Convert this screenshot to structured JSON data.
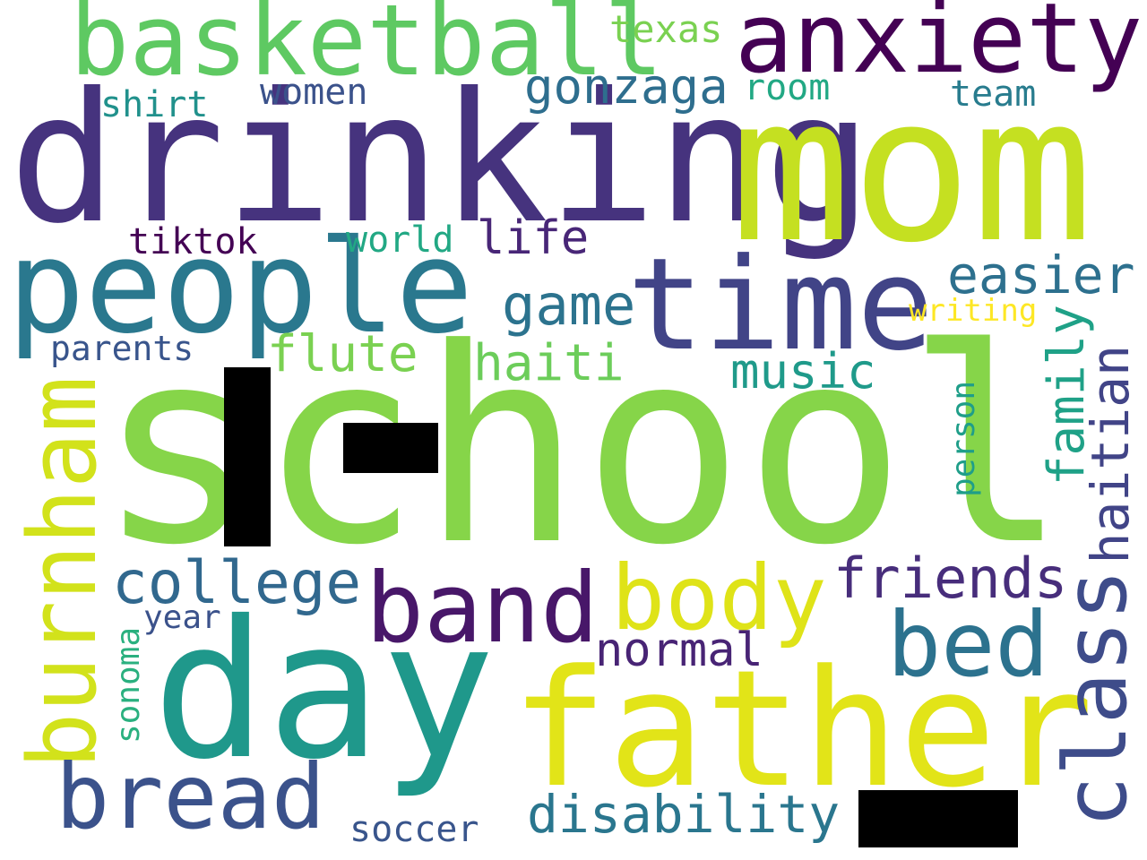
{
  "word_cloud": {
    "words": {
      "school": {
        "text": "school",
        "color": "#86d549"
      },
      "drinking": {
        "text": "drinking",
        "color": "#46337e"
      },
      "mom": {
        "text": "mom",
        "color": "#c5e021"
      },
      "day": {
        "text": "day",
        "color": "#1f988b"
      },
      "father": {
        "text": "father",
        "color": "#e2e418"
      },
      "time": {
        "text": "time",
        "color": "#414487"
      },
      "people": {
        "text": "people",
        "color": "#2a788e"
      },
      "basketball": {
        "text": "basketball",
        "color": "#5ec962"
      },
      "anxiety": {
        "text": "anxiety",
        "color": "#440154"
      },
      "burnham": {
        "text": "burnham",
        "color": "#d2e21b"
      },
      "class": {
        "text": "class",
        "color": "#3e4c8a"
      },
      "band": {
        "text": "band",
        "color": "#481769"
      },
      "bed": {
        "text": "bed",
        "color": "#2c728e"
      },
      "bread": {
        "text": "bread",
        "color": "#3b528b"
      },
      "body": {
        "text": "body",
        "color": "#dfe318"
      },
      "college": {
        "text": "college",
        "color": "#31688e"
      },
      "friends": {
        "text": "friends",
        "color": "#472d7b"
      },
      "disability": {
        "text": "disability",
        "color": "#2a768e"
      },
      "easier": {
        "text": "easier",
        "color": "#2d708e"
      },
      "haitian": {
        "text": "haitian",
        "color": "#414487"
      },
      "family": {
        "text": "family",
        "color": "#1fa187"
      },
      "game": {
        "text": "game",
        "color": "#2c738e"
      },
      "gonzaga": {
        "text": "gonzaga",
        "color": "#2e6e8e"
      },
      "haiti": {
        "text": "haiti",
        "color": "#6ccd5a"
      },
      "flute": {
        "text": "flute",
        "color": "#7ad151"
      },
      "music": {
        "text": "music",
        "color": "#1f9a8a"
      },
      "normal": {
        "text": "normal",
        "color": "#482475"
      },
      "life": {
        "text": "life",
        "color": "#482677"
      },
      "texas": {
        "text": "texas",
        "color": "#7ad151"
      },
      "women": {
        "text": "women",
        "color": "#3b528b"
      },
      "room": {
        "text": "room",
        "color": "#22a884"
      },
      "team": {
        "text": "team",
        "color": "#287c8e"
      },
      "shirt": {
        "text": "shirt",
        "color": "#21918c"
      },
      "tiktok": {
        "text": "tiktok",
        "color": "#440154"
      },
      "world": {
        "text": "world",
        "color": "#22a884"
      },
      "parents": {
        "text": "parents",
        "color": "#39558c"
      },
      "writing": {
        "text": "writing",
        "color": "#fde725"
      },
      "person": {
        "text": "person",
        "color": "#1f9e89"
      },
      "year": {
        "text": "year",
        "color": "#3b528b"
      },
      "sonoma": {
        "text": "sonoma",
        "color": "#2ab07f"
      },
      "soccer": {
        "text": "soccer",
        "color": "#39558c"
      }
    },
    "background_color": "#ffffff",
    "redaction_color": "#000000"
  }
}
